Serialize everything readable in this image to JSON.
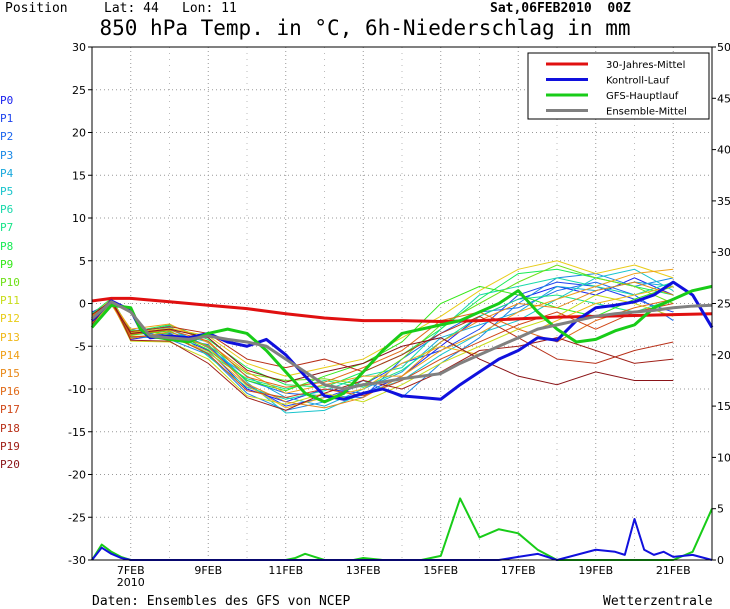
{
  "header": {
    "position_label": "Position",
    "lat": "Lat: 44",
    "lon": "Lon: 11",
    "datetime": "Sat,06FEB2010  00Z",
    "title": "850 hPa Temp. in °C, 6h-Niederschlag in mm"
  },
  "footer": {
    "source": "Daten: Ensembles des GFS von NCEP",
    "brand": "Wetterzentrale"
  },
  "ensemble_labels": [
    "P0",
    "P1",
    "P2",
    "P3",
    "P4",
    "P5",
    "P6",
    "P7",
    "P8",
    "P9",
    "P10",
    "P11",
    "P12",
    "P13",
    "P14",
    "P15",
    "P16",
    "P17",
    "P18",
    "P19",
    "P20"
  ],
  "ensemble_colors": [
    "#1a22ee",
    "#1e44ee",
    "#1c66ee",
    "#1a88e6",
    "#18a8dc",
    "#18c4cc",
    "#18d8aa",
    "#18e488",
    "#18ec55",
    "#34e818",
    "#6ee018",
    "#c8dc18",
    "#e8cc18",
    "#f0b818",
    "#f0a018",
    "#e88818",
    "#e06a18",
    "#d04818",
    "#b83018",
    "#a02018",
    "#8a1418"
  ],
  "chart_data": {
    "type": "line",
    "title": "850 hPa Temp. in °C, 6h-Niederschlag in mm",
    "x_ticks": [
      "7FEB",
      "9FEB",
      "11FEB",
      "13FEB",
      "15FEB",
      "17FEB",
      "19FEB",
      "21FEB"
    ],
    "x_subtick": "2010",
    "x_range": [
      6.0,
      22.0
    ],
    "y_left_range": [
      -30,
      30
    ],
    "y_left_ticks": [
      30,
      25,
      20,
      15,
      10,
      5,
      0,
      -5,
      -10,
      -15,
      -20,
      -25,
      -30
    ],
    "y_right_range": [
      0,
      50
    ],
    "y_right_ticks": [
      50,
      45,
      40,
      35,
      30,
      25,
      20,
      15,
      10,
      5,
      0
    ],
    "grid": true,
    "legend_position": "top-right",
    "legend": [
      {
        "name": "30-Jahres-Mittel",
        "color": "#e01010"
      },
      {
        "name": "Kontroll-Lauf",
        "color": "#1010dd"
      },
      {
        "name": "GFS-Hauptlauf",
        "color": "#18cc18"
      },
      {
        "name": "Ensemble-Mittel",
        "color": "#808080"
      }
    ],
    "series": [
      {
        "name": "30-Jahres-Mittel",
        "color": "#e01010",
        "x": [
          6.0,
          6.5,
          7.0,
          8.0,
          9.0,
          10.0,
          11.0,
          12.0,
          13.0,
          14.0,
          15.0,
          16.0,
          17.0,
          18.0,
          19.0,
          20.0,
          21.0,
          22.0
        ],
        "y": [
          0.3,
          0.6,
          0.6,
          0.2,
          -0.2,
          -0.6,
          -1.2,
          -1.7,
          -2.0,
          -2.0,
          -2.1,
          -2.0,
          -1.8,
          -1.6,
          -1.5,
          -1.4,
          -1.3,
          -1.2
        ]
      },
      {
        "name": "Kontroll-Lauf",
        "color": "#1010dd",
        "x": [
          6.0,
          6.5,
          7.0,
          7.25,
          7.5,
          8.0,
          8.5,
          9.0,
          9.5,
          10.0,
          10.5,
          11.0,
          11.5,
          12.0,
          12.5,
          13.0,
          13.5,
          14.0,
          14.5,
          15.0,
          15.5,
          16.0,
          16.5,
          17.0,
          17.5,
          18.0,
          18.5,
          19.0,
          19.5,
          20.0,
          20.5,
          21.0,
          21.5,
          22.0
        ],
        "y": [
          -2.0,
          0.3,
          -0.8,
          -3.0,
          -4.0,
          -3.8,
          -4.0,
          -3.5,
          -4.5,
          -5.0,
          -4.2,
          -6.0,
          -8.5,
          -10.8,
          -11.2,
          -10.5,
          -10.0,
          -10.8,
          -11.0,
          -11.2,
          -9.5,
          -8.0,
          -6.5,
          -5.5,
          -4.0,
          -4.3,
          -2.0,
          -0.5,
          -0.2,
          0.2,
          1.0,
          2.5,
          1.0,
          -2.8
        ]
      },
      {
        "name": "GFS-Hauptlauf",
        "color": "#18cc18",
        "x": [
          6.0,
          6.5,
          7.0,
          7.25,
          7.5,
          8.0,
          8.5,
          9.0,
          9.5,
          10.0,
          10.5,
          11.0,
          11.5,
          12.0,
          12.5,
          13.0,
          13.5,
          14.0,
          14.5,
          15.0,
          15.5,
          16.0,
          16.5,
          17.0,
          17.5,
          18.0,
          18.5,
          19.0,
          19.5,
          20.0,
          20.5,
          21.0,
          21.5,
          22.0
        ],
        "y": [
          -2.8,
          -0.2,
          -0.5,
          -3.0,
          -3.8,
          -4.2,
          -4.5,
          -3.5,
          -3.0,
          -3.5,
          -5.5,
          -8.0,
          -10.5,
          -11.5,
          -10.5,
          -8.0,
          -5.5,
          -3.5,
          -3.0,
          -2.5,
          -2.0,
          -1.0,
          0.0,
          1.5,
          -1.0,
          -3.0,
          -4.5,
          -4.2,
          -3.2,
          -2.5,
          -0.5,
          0.5,
          1.5,
          2.0
        ]
      },
      {
        "name": "Ensemble-Mittel",
        "color": "#808080",
        "x": [
          6.0,
          6.5,
          7.0,
          7.5,
          8.0,
          8.5,
          9.0,
          9.5,
          10.0,
          10.5,
          11.0,
          11.5,
          12.0,
          12.5,
          13.0,
          13.5,
          14.0,
          14.5,
          15.0,
          15.5,
          16.0,
          16.5,
          17.0,
          17.5,
          18.0,
          18.5,
          19.0,
          19.5,
          20.0,
          20.5,
          21.0,
          21.5,
          22.0
        ],
        "y": [
          -1.8,
          0.2,
          -1.0,
          -3.8,
          -4.0,
          -4.2,
          -3.8,
          -4.2,
          -4.5,
          -5.0,
          -6.5,
          -8.0,
          -9.5,
          -10.0,
          -9.5,
          -9.2,
          -8.8,
          -8.5,
          -8.2,
          -7.0,
          -6.0,
          -5.0,
          -4.0,
          -3.0,
          -2.5,
          -2.0,
          -1.5,
          -1.2,
          -1.0,
          -0.8,
          -0.5,
          -0.3,
          -0.2
        ]
      },
      {
        "name": "GFS-Hauptlauf Niederschlag",
        "color": "#18cc18",
        "x": [
          6.0,
          6.25,
          6.5,
          6.75,
          7.0,
          8.0,
          9.0,
          10.0,
          11.0,
          11.25,
          11.5,
          11.75,
          12.0,
          12.25,
          12.5,
          12.75,
          13.0,
          13.5,
          14.0,
          14.5,
          15.0,
          15.5,
          16.0,
          16.5,
          17.0,
          17.5,
          18.0,
          18.5,
          19.0,
          19.5,
          20.0,
          20.5,
          21.0,
          21.5,
          22.0
        ],
        "y_right": [
          0.0,
          1.5,
          0.8,
          0.3,
          0.0,
          0.0,
          0.0,
          0.0,
          0.0,
          0.2,
          0.6,
          0.3,
          0.0,
          0.0,
          0.0,
          0.0,
          0.2,
          0.0,
          0.0,
          0.0,
          0.4,
          6.0,
          2.2,
          3.0,
          2.6,
          1.0,
          0.0,
          0.0,
          0.0,
          0.0,
          0.0,
          0.0,
          0.0,
          0.8,
          5.0
        ]
      },
      {
        "name": "Kontroll-Lauf Niederschlag",
        "color": "#1010dd",
        "x": [
          6.0,
          6.25,
          6.5,
          6.75,
          7.0,
          8.0,
          9.0,
          10.0,
          11.0,
          12.0,
          13.0,
          14.0,
          15.0,
          16.0,
          16.5,
          17.0,
          17.5,
          18.0,
          18.5,
          19.0,
          19.5,
          19.75,
          20.0,
          20.25,
          20.5,
          20.75,
          21.0,
          21.5,
          22.0
        ],
        "y_right": [
          0.0,
          1.2,
          0.6,
          0.2,
          0.0,
          0.0,
          0.0,
          0.0,
          0.0,
          0.0,
          0.0,
          0.0,
          0.0,
          0.0,
          0.0,
          0.3,
          0.6,
          0.0,
          0.5,
          1.0,
          0.8,
          0.5,
          4.0,
          1.0,
          0.5,
          0.8,
          0.3,
          0.5,
          0.0
        ]
      }
    ],
    "ensemble_members": [
      {
        "name": "P0",
        "y": [
          -1.0,
          0.1,
          -4.2,
          -3.5,
          -5.5,
          -10.0,
          -11.5,
          -10.0,
          -10.5,
          -8.5,
          -5.0,
          -1.5,
          0.5,
          2.0,
          1.0,
          3.0,
          1.0
        ]
      },
      {
        "name": "P1",
        "y": [
          -2.0,
          -0.2,
          -3.0,
          -4.0,
          -4.8,
          -9.5,
          -12.0,
          -11.0,
          -9.5,
          -7.0,
          -5.5,
          -3.0,
          1.0,
          2.5,
          2.0,
          0.5,
          -1.0
        ]
      },
      {
        "name": "P2",
        "y": [
          -1.5,
          0.4,
          -3.6,
          -3.0,
          -5.0,
          -9.0,
          -10.5,
          -10.8,
          -11.0,
          -6.5,
          -3.5,
          -1.0,
          -0.5,
          1.5,
          2.5,
          1.0,
          -2.0
        ]
      },
      {
        "name": "P3",
        "y": [
          -2.2,
          0.0,
          -3.8,
          -4.2,
          -6.0,
          -10.5,
          -12.5,
          -11.5,
          -9.0,
          -11.0,
          -7.0,
          -4.0,
          0.0,
          3.0,
          3.5,
          2.0,
          3.0
        ]
      },
      {
        "name": "P4",
        "y": [
          -1.8,
          0.5,
          -3.2,
          -2.8,
          -5.2,
          -8.5,
          -11.0,
          -12.0,
          -10.0,
          -8.0,
          -4.0,
          -2.5,
          -1.0,
          2.0,
          1.5,
          2.5,
          2.0
        ]
      },
      {
        "name": "P5",
        "y": [
          -2.0,
          0.2,
          -4.0,
          -3.4,
          -4.5,
          -9.2,
          -12.8,
          -12.5,
          -10.5,
          -9.0,
          -6.0,
          -3.5,
          -2.0,
          0.5,
          3.0,
          4.0,
          1.5
        ]
      },
      {
        "name": "P6",
        "y": [
          -1.6,
          0.3,
          -3.5,
          -2.6,
          -6.2,
          -9.8,
          -11.2,
          -10.2,
          -8.5,
          -7.5,
          -3.0,
          1.0,
          2.0,
          3.0,
          2.0,
          1.0,
          2.5
        ]
      },
      {
        "name": "P7",
        "y": [
          -2.4,
          0.1,
          -3.9,
          -3.8,
          -5.8,
          -8.8,
          -10.0,
          -9.0,
          -9.8,
          -7.8,
          -4.5,
          -1.5,
          0.5,
          1.0,
          0.0,
          -1.0,
          0.5
        ]
      },
      {
        "name": "P8",
        "y": [
          -1.2,
          0.6,
          -3.3,
          -2.5,
          -4.2,
          -7.5,
          -9.5,
          -9.8,
          -8.0,
          -6.0,
          -3.0,
          0.5,
          3.5,
          4.0,
          3.0,
          2.0,
          1.0
        ]
      },
      {
        "name": "P9",
        "y": [
          -2.0,
          0.0,
          -3.7,
          -3.2,
          -5.4,
          -9.0,
          -10.2,
          -8.5,
          -7.0,
          -4.5,
          0.0,
          2.0,
          1.0,
          -0.5,
          -1.5,
          0.5,
          2.0
        ]
      },
      {
        "name": "P10",
        "y": [
          -1.9,
          0.4,
          -3.1,
          -3.6,
          -4.9,
          -8.2,
          -9.0,
          -8.8,
          -9.5,
          -6.5,
          -2.5,
          0.0,
          2.5,
          4.5,
          3.0,
          2.0,
          0.0
        ]
      },
      {
        "name": "P11",
        "y": [
          -2.1,
          0.2,
          -4.4,
          -4.5,
          -6.5,
          -10.8,
          -11.8,
          -10.5,
          -11.5,
          -9.5,
          -7.0,
          -5.0,
          -3.0,
          -1.5,
          1.0,
          0.0,
          -1.5
        ]
      },
      {
        "name": "P12",
        "y": [
          -1.4,
          0.5,
          -3.4,
          -2.9,
          -3.8,
          -7.0,
          -8.5,
          -7.5,
          -6.5,
          -4.0,
          -1.5,
          1.5,
          4.0,
          5.0,
          3.5,
          4.5,
          3.0
        ]
      },
      {
        "name": "P13",
        "y": [
          -2.3,
          -0.1,
          -3.8,
          -3.9,
          -5.6,
          -9.6,
          -12.2,
          -11.0,
          -10.0,
          -7.0,
          -5.0,
          -6.0,
          -4.0,
          -2.0,
          0.0,
          1.0,
          2.0
        ]
      },
      {
        "name": "P14",
        "y": [
          -1.7,
          0.3,
          -3.0,
          -2.4,
          -4.6,
          -8.0,
          -10.5,
          -9.5,
          -8.5,
          -8.5,
          -5.5,
          -3.5,
          -1.0,
          0.5,
          2.0,
          3.5,
          4.0
        ]
      },
      {
        "name": "P15",
        "y": [
          -2.0,
          0.1,
          -4.1,
          -3.3,
          -5.1,
          -9.4,
          -11.5,
          -12.2,
          -11.0,
          -8.5,
          -4.5,
          -2.0,
          0.0,
          -0.5,
          1.5,
          2.5,
          1.0
        ]
      },
      {
        "name": "P16",
        "y": [
          -1.5,
          0.4,
          -3.6,
          -3.1,
          -4.4,
          -8.6,
          -9.8,
          -9.2,
          -7.5,
          -5.5,
          -2.0,
          -1.0,
          -3.0,
          -4.5,
          -2.0,
          -0.5,
          0.5
        ]
      },
      {
        "name": "P17",
        "y": [
          -2.2,
          0.2,
          -3.9,
          -3.7,
          -5.9,
          -10.2,
          -11.0,
          -10.0,
          -10.8,
          -9.0,
          -6.5,
          -4.5,
          -2.5,
          -1.0,
          -3.0,
          -1.0,
          0.0
        ]
      },
      {
        "name": "P18",
        "y": [
          -1.8,
          0.0,
          -3.3,
          -2.7,
          -3.5,
          -6.5,
          -7.5,
          -6.5,
          -8.0,
          -6.0,
          -3.5,
          -1.5,
          -4.0,
          -6.5,
          -7.0,
          -5.5,
          -4.5
        ]
      },
      {
        "name": "P19",
        "y": [
          -2.5,
          0.6,
          -4.3,
          -4.4,
          -7.0,
          -11.0,
          -12.5,
          -10.5,
          -9.0,
          -10.0,
          -8.0,
          -5.5,
          -5.0,
          -4.0,
          -5.5,
          -7.0,
          -6.5
        ]
      },
      {
        "name": "P20",
        "y": [
          -1.3,
          0.3,
          -3.5,
          -3.0,
          -4.0,
          -7.8,
          -9.2,
          -8.0,
          -7.0,
          -5.0,
          -4.0,
          -6.5,
          -8.5,
          -9.5,
          -8.0,
          -9.0,
          -9.0
        ]
      }
    ],
    "ensemble_x": [
      6.0,
      6.5,
      7.0,
      8.0,
      9.0,
      10.0,
      11.0,
      12.0,
      13.0,
      14.0,
      15.0,
      16.0,
      17.0,
      18.0,
      19.0,
      20.0,
      21.0
    ]
  }
}
